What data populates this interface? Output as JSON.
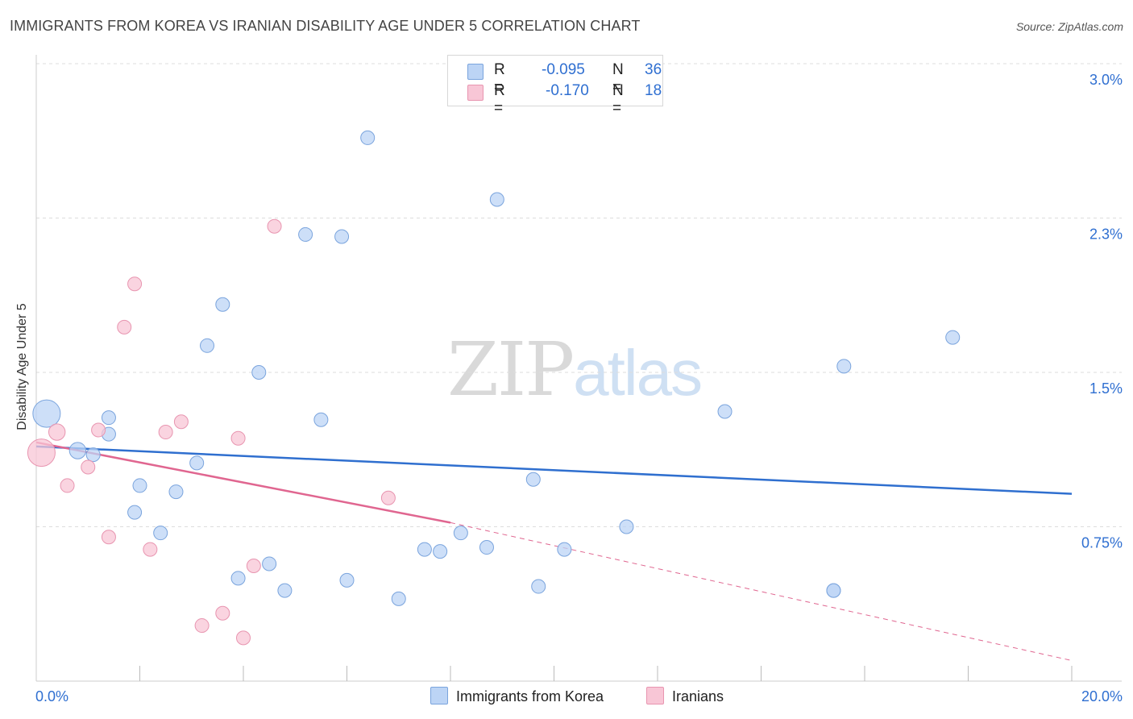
{
  "title": "IMMIGRANTS FROM KOREA VS IRANIAN DISABILITY AGE UNDER 5 CORRELATION CHART",
  "source": "Source: ZipAtlas.com",
  "watermark": {
    "zip": "ZIP",
    "atlas": "atlas"
  },
  "legend": {
    "rows": [
      {
        "r_label": "R =",
        "r_value": "-0.095",
        "n_label": "N =",
        "n_value": "36"
      },
      {
        "r_label": "R =",
        "r_value": "-0.170",
        "n_label": "N =",
        "n_value": "18"
      }
    ]
  },
  "bottom_legend": {
    "korea": "Immigrants from Korea",
    "iranians": "Iranians"
  },
  "colors": {
    "korea_fill": "#bcd4f5",
    "korea_stroke": "#7aa4dd",
    "korea_line": "#2f6fcf",
    "iran_fill": "#f8c6d6",
    "iran_stroke": "#e895b0",
    "iran_line": "#e06690",
    "tick_label": "#2f6fd1",
    "grid": "#dddddd"
  },
  "chart_data": {
    "type": "scatter",
    "title": "IMMIGRANTS FROM KOREA VS IRANIAN DISABILITY AGE UNDER 5 CORRELATION CHART",
    "xlabel": "",
    "ylabel": "Disability Age Under 5",
    "xlim": [
      0,
      20
    ],
    "ylim": [
      0,
      3.0
    ],
    "y_ticks": [
      {
        "value": 3.0,
        "label": "3.0%"
      },
      {
        "value": 2.25,
        "label": "2.3%"
      },
      {
        "value": 1.5,
        "label": "1.5%"
      },
      {
        "value": 0.75,
        "label": "0.75%"
      }
    ],
    "x_tick_labels": [
      {
        "value": 0,
        "label": "0.0%"
      },
      {
        "value": 20,
        "label": "20.0%"
      }
    ],
    "x_minor_ticks": [
      2,
      4,
      6,
      8,
      10,
      12,
      14,
      16,
      18,
      20
    ],
    "series": [
      {
        "name": "Immigrants from Korea",
        "r": -0.095,
        "n": 36,
        "trend": {
          "x": [
            0,
            20
          ],
          "y": [
            1.14,
            0.91
          ]
        },
        "points": [
          {
            "x": 0.2,
            "y": 1.3,
            "s": 2
          },
          {
            "x": 0.8,
            "y": 1.12,
            "s": 1.2
          },
          {
            "x": 1.1,
            "y": 1.1,
            "s": 1
          },
          {
            "x": 1.4,
            "y": 1.2,
            "s": 1
          },
          {
            "x": 1.4,
            "y": 1.28,
            "s": 1
          },
          {
            "x": 1.9,
            "y": 0.82,
            "s": 1
          },
          {
            "x": 2.0,
            "y": 0.95,
            "s": 1
          },
          {
            "x": 2.4,
            "y": 0.72,
            "s": 1
          },
          {
            "x": 2.7,
            "y": 0.92,
            "s": 1
          },
          {
            "x": 3.1,
            "y": 1.06,
            "s": 1
          },
          {
            "x": 3.3,
            "y": 1.63,
            "s": 1
          },
          {
            "x": 3.6,
            "y": 1.83,
            "s": 1
          },
          {
            "x": 3.9,
            "y": 0.5,
            "s": 1
          },
          {
            "x": 4.3,
            "y": 1.5,
            "s": 1
          },
          {
            "x": 4.5,
            "y": 0.57,
            "s": 1
          },
          {
            "x": 4.8,
            "y": 0.44,
            "s": 1
          },
          {
            "x": 5.2,
            "y": 2.17,
            "s": 1
          },
          {
            "x": 5.5,
            "y": 1.27,
            "s": 1
          },
          {
            "x": 5.9,
            "y": 2.16,
            "s": 1
          },
          {
            "x": 6.0,
            "y": 0.49,
            "s": 1
          },
          {
            "x": 6.4,
            "y": 2.64,
            "s": 1
          },
          {
            "x": 7.0,
            "y": 0.4,
            "s": 1
          },
          {
            "x": 7.5,
            "y": 0.64,
            "s": 1
          },
          {
            "x": 7.8,
            "y": 0.63,
            "s": 1
          },
          {
            "x": 8.2,
            "y": 0.72,
            "s": 1
          },
          {
            "x": 8.7,
            "y": 0.65,
            "s": 1
          },
          {
            "x": 8.9,
            "y": 2.34,
            "s": 1
          },
          {
            "x": 9.6,
            "y": 0.98,
            "s": 1
          },
          {
            "x": 9.7,
            "y": 0.46,
            "s": 1
          },
          {
            "x": 10.2,
            "y": 0.64,
            "s": 1
          },
          {
            "x": 11.4,
            "y": 0.75,
            "s": 1
          },
          {
            "x": 13.3,
            "y": 1.31,
            "s": 1
          },
          {
            "x": 15.4,
            "y": 0.44,
            "s": 1
          },
          {
            "x": 15.4,
            "y": 0.44,
            "s": 1
          },
          {
            "x": 15.6,
            "y": 1.53,
            "s": 1
          },
          {
            "x": 17.7,
            "y": 1.67,
            "s": 1
          }
        ]
      },
      {
        "name": "Iranians",
        "r": -0.17,
        "n": 18,
        "trend": {
          "x": [
            0,
            8.0
          ],
          "y": [
            1.16,
            0.77
          ]
        },
        "trend_dashed": {
          "x": [
            8.0,
            20
          ],
          "y": [
            0.77,
            0.1
          ]
        },
        "points": [
          {
            "x": 0.1,
            "y": 1.11,
            "s": 2
          },
          {
            "x": 0.4,
            "y": 1.21,
            "s": 1.2
          },
          {
            "x": 0.6,
            "y": 0.95,
            "s": 1
          },
          {
            "x": 1.0,
            "y": 1.04,
            "s": 1
          },
          {
            "x": 1.2,
            "y": 1.22,
            "s": 1
          },
          {
            "x": 1.4,
            "y": 0.7,
            "s": 1
          },
          {
            "x": 1.7,
            "y": 1.72,
            "s": 1
          },
          {
            "x": 1.9,
            "y": 1.93,
            "s": 1
          },
          {
            "x": 2.2,
            "y": 0.64,
            "s": 1
          },
          {
            "x": 2.5,
            "y": 1.21,
            "s": 1
          },
          {
            "x": 2.8,
            "y": 1.26,
            "s": 1
          },
          {
            "x": 3.2,
            "y": 0.27,
            "s": 1
          },
          {
            "x": 3.6,
            "y": 0.33,
            "s": 1
          },
          {
            "x": 3.9,
            "y": 1.18,
            "s": 1
          },
          {
            "x": 4.0,
            "y": 0.21,
            "s": 1
          },
          {
            "x": 4.2,
            "y": 0.56,
            "s": 1
          },
          {
            "x": 4.6,
            "y": 2.21,
            "s": 1
          },
          {
            "x": 6.8,
            "y": 0.89,
            "s": 1
          }
        ]
      }
    ]
  }
}
